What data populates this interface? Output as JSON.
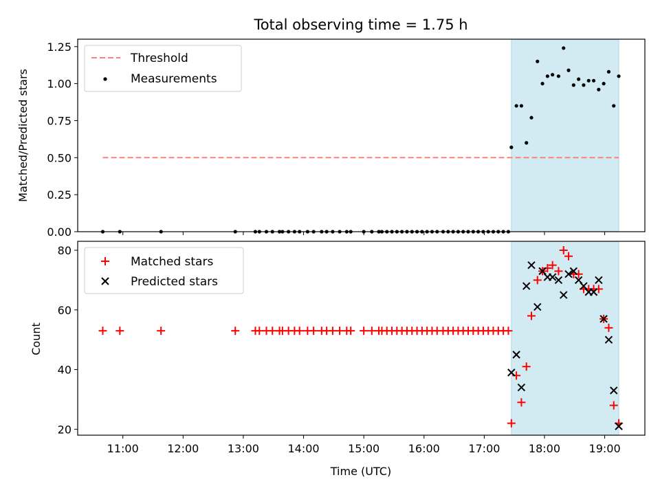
{
  "chart_data": [
    {
      "type": "scatter",
      "title": "Total observing time = 1.75 h",
      "xlabel": "",
      "ylabel": "Matched/Predicted stars",
      "xlim": [
        "10:15",
        "19:40"
      ],
      "ylim": [
        0,
        1.3
      ],
      "yticks": [
        0.0,
        0.25,
        0.5,
        0.75,
        1.0,
        1.25
      ],
      "ytick_labels": [
        "0.00",
        "0.25",
        "0.50",
        "0.75",
        "1.00",
        "1.25"
      ],
      "highlight_span": {
        "from": "17:27",
        "to": "19:14",
        "color": "#add8e6"
      },
      "threshold": {
        "name": "Threshold",
        "value": 0.5,
        "from": "10:40",
        "to": "19:14",
        "color": "#ff7f7f",
        "style": "dashed"
      },
      "legend": {
        "position": "upper-left",
        "entries": [
          "Threshold",
          "Measurements"
        ]
      },
      "series": [
        {
          "name": "Measurements",
          "color": "#000000",
          "marker": "dot",
          "points": [
            [
              "10:40",
              0
            ],
            [
              "10:57",
              0
            ],
            [
              "11:38",
              0
            ],
            [
              "12:52",
              0
            ],
            [
              "13:12",
              0
            ],
            [
              "13:16",
              0
            ],
            [
              "13:23",
              0
            ],
            [
              "13:29",
              0
            ],
            [
              "13:36",
              0
            ],
            [
              "13:39",
              0
            ],
            [
              "13:45",
              0
            ],
            [
              "13:51",
              0
            ],
            [
              "13:56",
              0
            ],
            [
              "14:04",
              0
            ],
            [
              "14:10",
              0
            ],
            [
              "14:18",
              0
            ],
            [
              "14:23",
              0
            ],
            [
              "14:29",
              0
            ],
            [
              "14:36",
              0
            ],
            [
              "14:43",
              0
            ],
            [
              "14:47",
              0
            ],
            [
              "15:00",
              0
            ],
            [
              "15:08",
              0
            ],
            [
              "15:15",
              0
            ],
            [
              "15:18",
              0
            ],
            [
              "15:23",
              0
            ],
            [
              "15:28",
              0
            ],
            [
              "15:33",
              0
            ],
            [
              "15:38",
              0
            ],
            [
              "15:43",
              0
            ],
            [
              "15:48",
              0
            ],
            [
              "15:53",
              0
            ],
            [
              "15:58",
              0
            ],
            [
              "16:03",
              0
            ],
            [
              "16:08",
              0
            ],
            [
              "16:13",
              0
            ],
            [
              "16:19",
              0
            ],
            [
              "16:24",
              0
            ],
            [
              "16:29",
              0
            ],
            [
              "16:34",
              0
            ],
            [
              "16:39",
              0
            ],
            [
              "16:44",
              0
            ],
            [
              "16:49",
              0
            ],
            [
              "16:54",
              0
            ],
            [
              "16:59",
              0
            ],
            [
              "17:04",
              0
            ],
            [
              "17:09",
              0
            ],
            [
              "17:14",
              0
            ],
            [
              "17:19",
              0
            ],
            [
              "17:24",
              0
            ],
            [
              "17:27",
              0.57
            ],
            [
              "17:32",
              0.85
            ],
            [
              "17:37",
              0.85
            ],
            [
              "17:42",
              0.6
            ],
            [
              "17:47",
              0.77
            ],
            [
              "17:53",
              1.15
            ],
            [
              "17:58",
              1.0
            ],
            [
              "18:03",
              1.05
            ],
            [
              "18:08",
              1.06
            ],
            [
              "18:14",
              1.05
            ],
            [
              "18:19",
              1.24
            ],
            [
              "18:24",
              1.09
            ],
            [
              "18:29",
              0.99
            ],
            [
              "18:34",
              1.03
            ],
            [
              "18:39",
              0.99
            ],
            [
              "18:44",
              1.02
            ],
            [
              "18:49",
              1.02
            ],
            [
              "18:54",
              0.96
            ],
            [
              "18:59",
              1.0
            ],
            [
              "19:04",
              1.08
            ],
            [
              "19:09",
              0.85
            ],
            [
              "19:14",
              1.05
            ]
          ]
        }
      ]
    },
    {
      "type": "scatter",
      "title": "",
      "xlabel": "Time (UTC)",
      "ylabel": "Count",
      "xlim": [
        "10:15",
        "19:40"
      ],
      "ylim": [
        18,
        83
      ],
      "yticks": [
        20,
        40,
        60,
        80
      ],
      "xticks": [
        "11:00",
        "12:00",
        "13:00",
        "14:00",
        "15:00",
        "16:00",
        "17:00",
        "18:00",
        "19:00"
      ],
      "highlight_span": {
        "from": "17:27",
        "to": "19:14",
        "color": "#add8e6"
      },
      "legend": {
        "position": "upper-left",
        "entries": [
          "Matched stars",
          "Predicted stars"
        ]
      },
      "series": [
        {
          "name": "Matched stars",
          "color": "#ff0000",
          "marker": "plus",
          "points": [
            [
              "10:40",
              53
            ],
            [
              "10:57",
              53
            ],
            [
              "11:38",
              53
            ],
            [
              "12:52",
              53
            ],
            [
              "13:12",
              53
            ],
            [
              "13:16",
              53
            ],
            [
              "13:23",
              53
            ],
            [
              "13:29",
              53
            ],
            [
              "13:36",
              53
            ],
            [
              "13:39",
              53
            ],
            [
              "13:45",
              53
            ],
            [
              "13:51",
              53
            ],
            [
              "13:56",
              53
            ],
            [
              "14:04",
              53
            ],
            [
              "14:10",
              53
            ],
            [
              "14:18",
              53
            ],
            [
              "14:23",
              53
            ],
            [
              "14:29",
              53
            ],
            [
              "14:36",
              53
            ],
            [
              "14:43",
              53
            ],
            [
              "14:47",
              53
            ],
            [
              "15:00",
              53
            ],
            [
              "15:08",
              53
            ],
            [
              "15:15",
              53
            ],
            [
              "15:18",
              53
            ],
            [
              "15:23",
              53
            ],
            [
              "15:28",
              53
            ],
            [
              "15:33",
              53
            ],
            [
              "15:38",
              53
            ],
            [
              "15:43",
              53
            ],
            [
              "15:48",
              53
            ],
            [
              "15:53",
              53
            ],
            [
              "15:58",
              53
            ],
            [
              "16:03",
              53
            ],
            [
              "16:08",
              53
            ],
            [
              "16:13",
              53
            ],
            [
              "16:19",
              53
            ],
            [
              "16:24",
              53
            ],
            [
              "16:29",
              53
            ],
            [
              "16:34",
              53
            ],
            [
              "16:39",
              53
            ],
            [
              "16:44",
              53
            ],
            [
              "16:49",
              53
            ],
            [
              "16:54",
              53
            ],
            [
              "16:59",
              53
            ],
            [
              "17:04",
              53
            ],
            [
              "17:09",
              53
            ],
            [
              "17:14",
              53
            ],
            [
              "17:19",
              53
            ],
            [
              "17:24",
              53
            ],
            [
              "17:27",
              22
            ],
            [
              "17:32",
              38
            ],
            [
              "17:37",
              29
            ],
            [
              "17:42",
              41
            ],
            [
              "17:47",
              58
            ],
            [
              "17:53",
              70
            ],
            [
              "17:58",
              73
            ],
            [
              "18:03",
              74
            ],
            [
              "18:08",
              75
            ],
            [
              "18:14",
              73
            ],
            [
              "18:19",
              80
            ],
            [
              "18:24",
              78
            ],
            [
              "18:29",
              72
            ],
            [
              "18:34",
              72
            ],
            [
              "18:39",
              67
            ],
            [
              "18:44",
              67
            ],
            [
              "18:49",
              67
            ],
            [
              "18:54",
              67
            ],
            [
              "18:59",
              57
            ],
            [
              "19:04",
              54
            ],
            [
              "19:09",
              28
            ],
            [
              "19:14",
              22
            ]
          ]
        },
        {
          "name": "Predicted stars",
          "color": "#000000",
          "marker": "x",
          "points": [
            [
              "17:27",
              39
            ],
            [
              "17:32",
              45
            ],
            [
              "17:37",
              34
            ],
            [
              "17:42",
              68
            ],
            [
              "17:47",
              75
            ],
            [
              "17:53",
              61
            ],
            [
              "17:58",
              73
            ],
            [
              "18:03",
              71
            ],
            [
              "18:08",
              71
            ],
            [
              "18:14",
              70
            ],
            [
              "18:19",
              65
            ],
            [
              "18:24",
              72
            ],
            [
              "18:29",
              73
            ],
            [
              "18:34",
              70
            ],
            [
              "18:39",
              68
            ],
            [
              "18:44",
              66
            ],
            [
              "18:49",
              66
            ],
            [
              "18:54",
              70
            ],
            [
              "18:59",
              57
            ],
            [
              "19:04",
              50
            ],
            [
              "19:09",
              33
            ],
            [
              "19:14",
              21
            ]
          ]
        }
      ]
    }
  ]
}
